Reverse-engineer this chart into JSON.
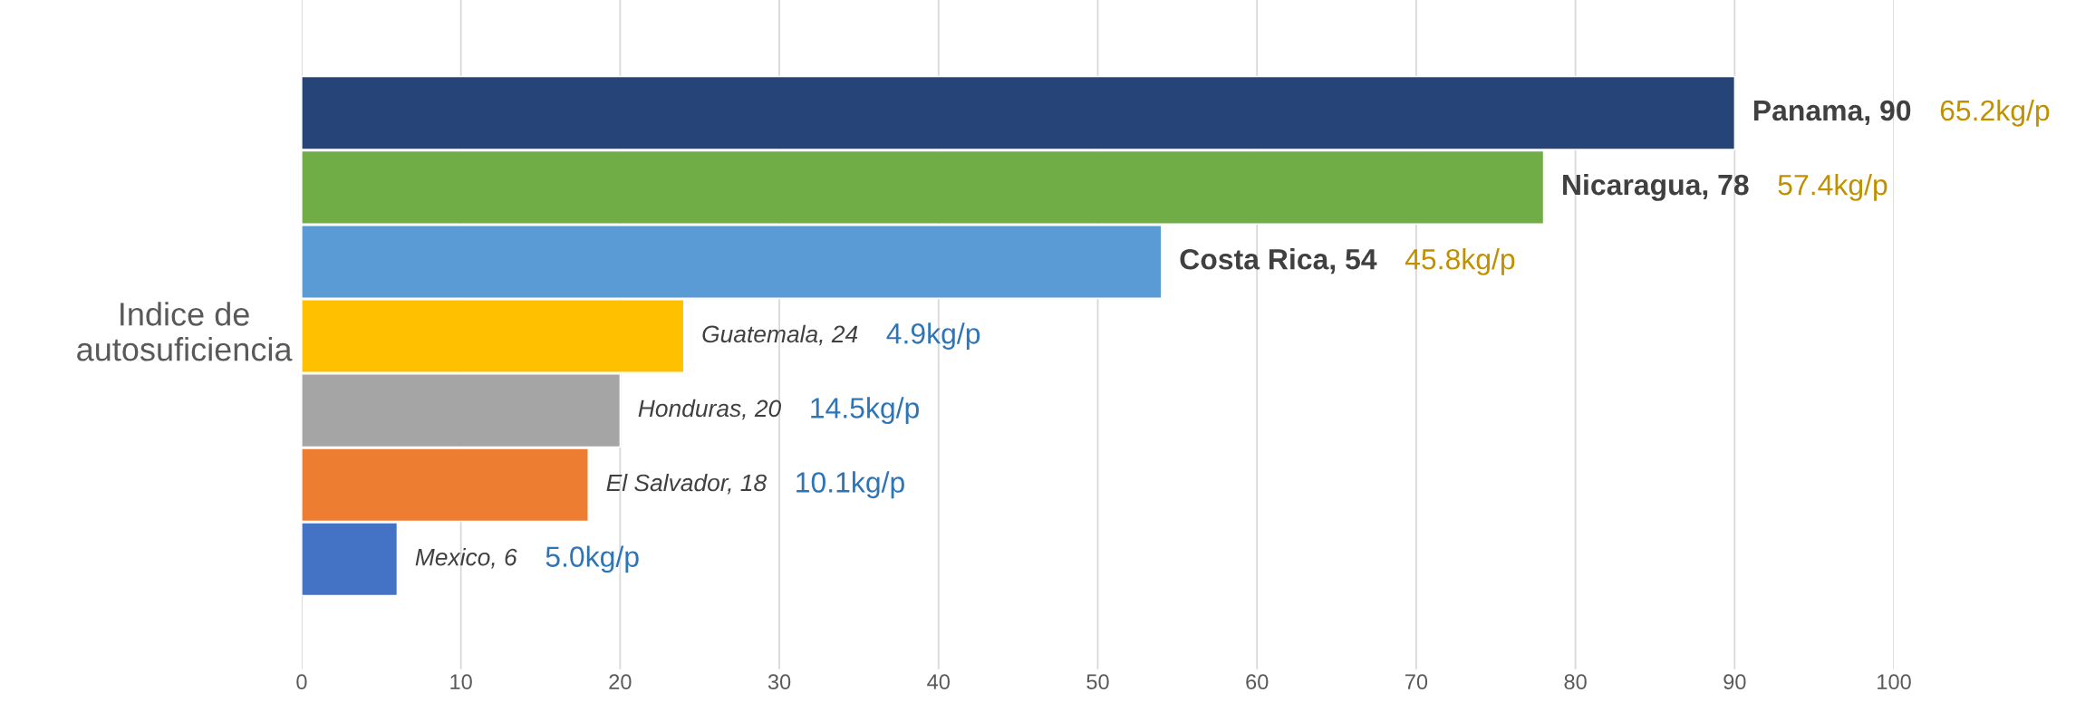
{
  "chart_data": {
    "type": "bar",
    "orientation": "horizontal",
    "ylabel": "Indice de\nautosuficiencia",
    "categories": [
      null,
      null,
      null,
      null,
      null,
      null,
      null
    ],
    "values": [
      90,
      78,
      54,
      24,
      20,
      18,
      6
    ],
    "colors": [
      "#264478",
      "#70ad47",
      "#5b9bd5",
      "#ffc000",
      "#a5a5a5",
      "#ed7d31",
      "#4472c4"
    ],
    "value_labels": [
      "Panama, 90",
      "Nicaragua, 78",
      "Costa Rica, 54",
      "Guatemala, 24",
      "Honduras, 20",
      "El Salvador, 18",
      "Mexico, 6"
    ],
    "annotations": [
      "65.2kg/p",
      "57.4kg/p",
      "45.8kg/p",
      "4.9kg/p",
      "14.5kg/p",
      "10.1kg/p",
      "5.0kg/p"
    ],
    "xlim": [
      0,
      100
    ],
    "xticks": [
      0,
      10,
      20,
      30,
      40,
      50,
      60,
      70,
      80,
      90,
      100
    ],
    "grid": "x",
    "legend": false
  }
}
